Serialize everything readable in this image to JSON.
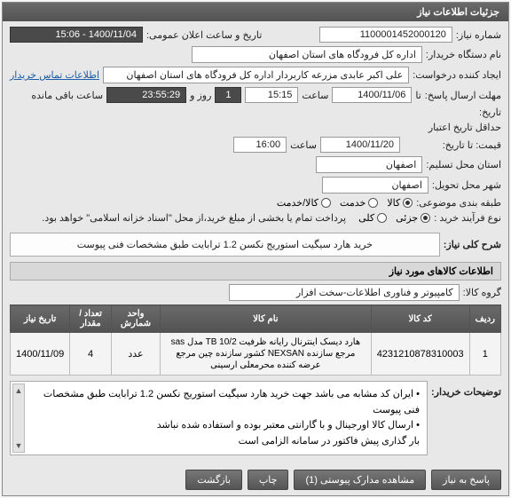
{
  "panel_title": "جزئیات اطلاعات نیاز",
  "fields": {
    "need_no_label": "شماره نیاز:",
    "need_no": "1100001452000120",
    "public_date_label": "تاریخ و ساعت اعلان عمومی:",
    "public_date": "1400/11/04 - 15:06",
    "buyer_label": "نام دستگاه خریدار:",
    "buyer": "اداره کل فرودگاه های استان اصفهان",
    "requester_label": "ایجاد کننده درخواست:",
    "requester": "علی اکبر عابدی مزرعه کاربردار اداره کل فرودگاه های استان اصفهان",
    "contact_link": "اطلاعات تماس خریدار",
    "deadline_send_label": "مهلت ارسال پاسخ:",
    "deadline_prefix": "تا",
    "deadline_date": "1400/11/06",
    "time_label": "ساعت",
    "deadline_time": "15:15",
    "day_label": "روز و",
    "days_remain": "1",
    "countdown": "23:55:29",
    "remain_suffix": "ساعت باقی مانده",
    "history_label": "تاریخ:",
    "min_valid_label": "حداقل تاریخ اعتبار",
    "valid_to_label": "قیمت: تا تاریخ:",
    "valid_date": "1400/11/20",
    "valid_time": "16:00",
    "loc_need_label": "استان محل تسلیم:",
    "loc_need": "اصفهان",
    "loc_deliv_label": "شهر محل تحویل:",
    "loc_deliv": "اصفهان",
    "classify_label": "طبقه بندی موضوعی:",
    "class_opts": [
      "کالا",
      "خدمت",
      "کالا/خدمت"
    ],
    "class_selected": 0,
    "buy_type_label": "نوع فرآیند خرید :",
    "buy_opts": [
      "جزئی",
      "کلی"
    ],
    "buy_selected": 0,
    "buy_note": "پرداخت تمام یا بخشی از مبلغ خرید،از محل \"اسناد خزانه اسلامی\" خواهد بود."
  },
  "summary": {
    "label": "شرح کلی نیاز:",
    "text": "خرید هارد سیگیت استوریج نکسن 1.2 ترابایت طبق مشخصات فنی پیوست"
  },
  "items_header": "اطلاعات کالاهای مورد نیاز",
  "group": {
    "label": "گروه کالا:",
    "value": "کامپیوتر و فناوری اطلاعات-سخت افزار"
  },
  "table": {
    "cols": [
      "ردیف",
      "کد کالا",
      "نام کالا",
      "واحد شمارش",
      "تعداد / مقدار",
      "تاریخ نیاز"
    ],
    "rows": [
      [
        "1",
        "4231210878310003",
        "هارد دیسک اینترنال رایانه ظرفیت TB 10/2 مدل sas مرجع سازنده NEXSAN کشور سازنده چین مرجع عرضه کننده محرمعلی ارسینی",
        "عدد",
        "4",
        "1400/11/09"
      ]
    ]
  },
  "buyer_notes": {
    "label": "توضیحات خریدار:",
    "lines": [
      "• ایران کد مشابه می باشد جهت خرید هارد سیگیت استوریج نکسن 1.2 ترابایت طبق مشخصات فنی پیوست",
      "• ارسال کالا اورجینال و با گارانتی معتبر بوده و استفاده شده نباشد",
      "بار گذاری پیش فاکتور در سامانه الزامی است"
    ]
  },
  "buttons": {
    "reply": "پاسخ به نیاز",
    "attach": "مشاهده مدارک پیوستی (1)",
    "print": "چاپ",
    "back": "بازگشت"
  }
}
